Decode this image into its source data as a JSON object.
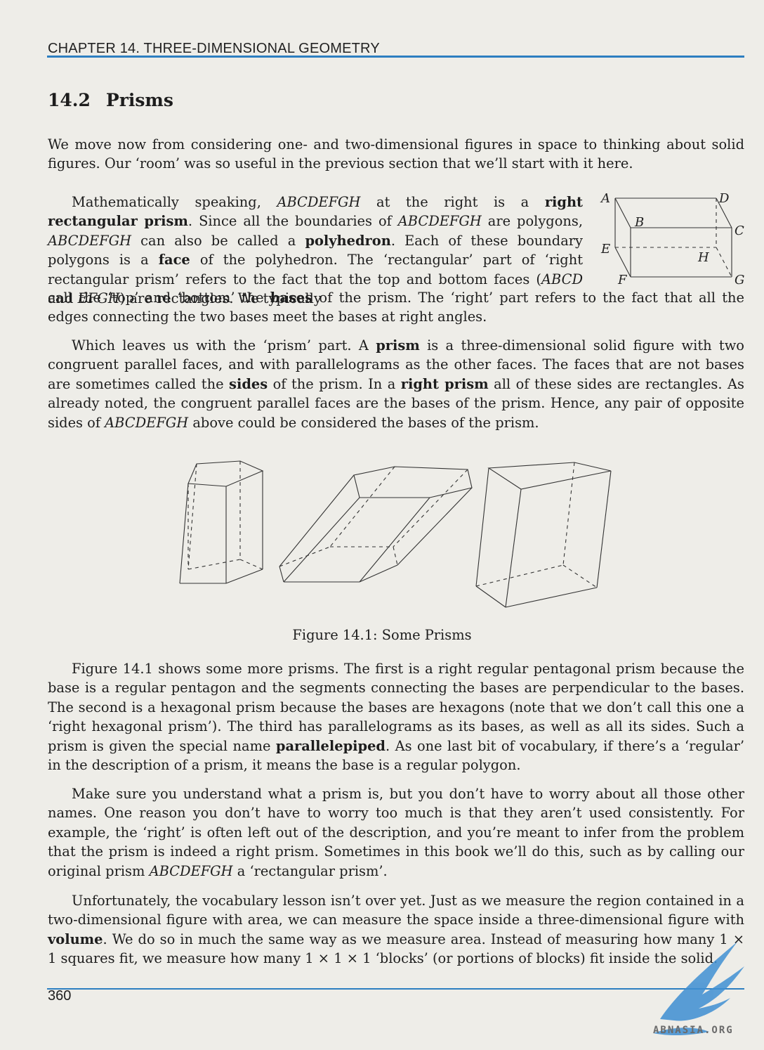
{
  "header": {
    "chapter": "CHAPTER 14.  THREE-DIMENSIONAL GEOMETRY"
  },
  "section": {
    "number": "14.2",
    "title": "Prisms"
  },
  "paragraphs": {
    "p1": "We move now from considering one- and two-dimensional figures in space to thinking about solid figures. Our ‘room’ was so useful in the previous section that we’ll start with it here.",
    "p2": "Mathematically speaking, <i>ABCDEFGH</i> at the right is a <b>right rectangular prism</b>. Since all the boundaries of <i>ABCDEFGH</i> are polygons, <i>ABCDEFGH</i> can also be called a <b>polyhedron</b>. Each of these boundary polygons is a <b>face</b> of the polyhedron. The ‘rectangular’ part of ‘right rectangular prism’ refers to the fact that the top and bottom faces (<i>ABCD</i> and <i>EFGH</i>) are rectangles. We typically",
    "p2b": "call the ‘top’ and ‘bottom’ the <b>bases</b> of the prism. The ‘right’ part refers to the fact that all the edges connecting the two bases meet the bases at right angles.",
    "p3": "Which leaves us with the ‘prism’ part. A <b>prism</b> is a three-dimensional solid figure with two congruent parallel faces, and with parallelograms as the other faces. The faces that are not bases are sometimes called the <b>sides</b> of the prism. In a <b>right prism</b> all of these sides are rectangles. As already noted, the congruent parallel faces are the bases of the prism. Hence, any pair of opposite sides of <i>ABCDEFGH</i> above could be considered the bases of the prism.",
    "p4": "Figure 14.1 shows some more prisms. The first is a right regular pentagonal prism because the base is a regular pentagon and the segments connecting the bases are perpendicular to the bases. The second is a hexagonal prism because the bases are hexagons (note that we don’t call this one a ‘right hexagonal prism’). The third has parallelograms as its bases, as well as all its sides. Such a prism is given the special name <b>parallelepiped</b>. As one last bit of vocabulary, if there’s a ‘regular’ in the description of a prism, it means the base is a regular polygon.",
    "p5": "Make sure you understand what a prism is, but you don’t have to worry about all those other names. One reason you don’t have to worry too much is that they aren’t used consistently. For example, the ‘right’ is often left out of the description, and you’re meant to infer from the problem that the prism is indeed a right prism. Sometimes in this book we’ll do this, such as by calling our original prism <i>ABCDEFGH</i> a ‘rectangular prism’.",
    "p6": "Unfortunately, the vocabulary lesson isn’t over yet. Just as we measure the region contained in a two-dimensional figure with area, we can measure the space inside a three-dimensional figure with <b>volume</b>. We do so in much the same way as we measure area. Instead of measuring how many 1 × 1 squares fit, we measure how many 1 × 1 × 1 ‘blocks’ (or portions of blocks) fit inside the solid."
  },
  "box_labels": {
    "A": "A",
    "B": "B",
    "C": "C",
    "D": "D",
    "E": "E",
    "F": "F",
    "G": "G",
    "H": "H"
  },
  "figure_caption": "Figure 14.1: Some Prisms",
  "footer": {
    "page_number": "360"
  },
  "watermark": {
    "text": "ABNASIA.ORG"
  },
  "colors": {
    "rule": "#2d7fc1",
    "watermark": "#3f8fd2",
    "background": "#eeede8"
  }
}
